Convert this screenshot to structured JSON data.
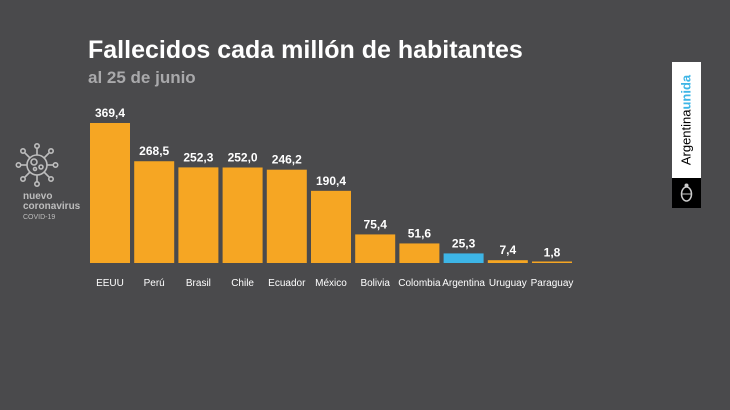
{
  "chart_data": {
    "type": "bar",
    "title": "Fallecidos cada millón de habitantes",
    "subtitle": "al 25 de junio",
    "xlabel": "",
    "ylabel": "",
    "categories": [
      "EEUU",
      "Perú",
      "Brasil",
      "Chile",
      "Ecuador",
      "México",
      "Bolivia",
      "Colombia",
      "Argentina",
      "Uruguay",
      "Paraguay"
    ],
    "values": [
      369.4,
      268.5,
      252.3,
      252.0,
      246.2,
      190.4,
      75.4,
      51.6,
      25.3,
      7.4,
      1.8
    ],
    "value_labels": [
      "369,4",
      "268,5",
      "252,3",
      "252,0",
      "246,2",
      "190,4",
      "75,4",
      "51,6",
      "25,3",
      "7,4",
      "1,8"
    ],
    "highlight": "Argentina",
    "ylim": [
      0,
      369.4
    ],
    "grid": false
  },
  "colors": {
    "bar": "#f6a623",
    "highlight": "#3db5e6",
    "background": "#4a4a4c"
  },
  "badge": {
    "line1": "nuevo",
    "line2": "coronavirus",
    "line3": "COVID-19",
    "icon": "virus-icon"
  },
  "logo": {
    "part1": "Argentina",
    "part2": "unida",
    "icon": "coat-of-arms-icon"
  }
}
